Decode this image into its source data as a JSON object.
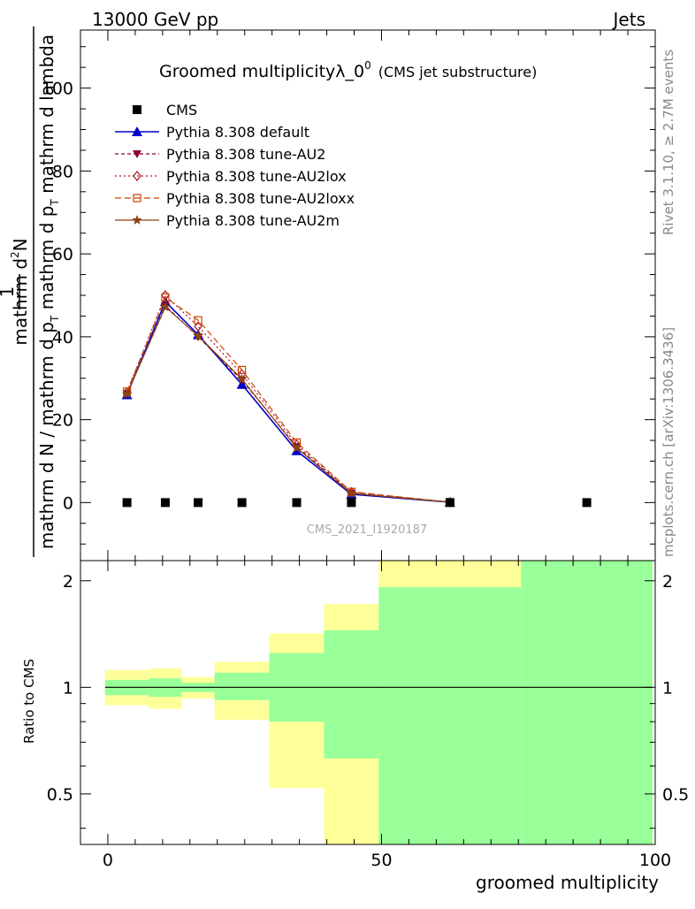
{
  "header": {
    "left": "13000 GeV pp",
    "right": "Jets"
  },
  "side_labels": {
    "rivet": "Rivet 3.1.10, ≥ 2.7M events",
    "mcplots": "mcplots.cern.ch [arXiv:1306.3436]"
  },
  "colors": {
    "cms": "#000000",
    "default": "#0000cc",
    "au2": "#8b0033",
    "au2lox": "#b0102a",
    "au2loxx": "#cc4400",
    "au2m": "#8b4513",
    "band_inner": "#99ff99",
    "band_outer": "#ffff99"
  },
  "chart_data": [
    {
      "type": "line",
      "title": "Groomed multiplicityλ_0",
      "title_sup": "0",
      "title_note": "(CMS jet substructure)",
      "ylabel_top": "1",
      "ylabel_num": "mathrm d",
      "ylabel_num_sup": "2",
      "ylabel_num_tail": "N",
      "ylabel_den": "mathrm d N / mathrm d p",
      "ylabel_den_sub": "T",
      "ylabel_den_mid": " mathrm d p",
      "ylabel_den_sub2": "T",
      "ylabel_den_tail": " mathrm d lambda",
      "watermark": "CMS_2021_I1920187",
      "xlim": [
        -5,
        100
      ],
      "ylim": [
        -14,
        114
      ],
      "yticks": [
        0,
        20,
        40,
        60,
        80,
        100
      ],
      "grid": false,
      "legend_position": "top-left",
      "series": [
        {
          "name": "CMS",
          "style": "cms",
          "x": [
            3.5,
            10.5,
            16.5,
            24.5,
            34.5,
            44.5,
            62.5,
            87.5
          ],
          "y": [
            0,
            0,
            0,
            0,
            0,
            0,
            0,
            0
          ]
        },
        {
          "name": "Pythia 8.308 default",
          "style": "default",
          "x": [
            3.5,
            10.5,
            16.5,
            24.5,
            34.5,
            44.5,
            62.5
          ],
          "y": [
            26.0,
            48.5,
            40.5,
            28.5,
            12.5,
            2.0,
            0.1
          ]
        },
        {
          "name": "Pythia 8.308 tune-AU2",
          "style": "au2",
          "x": [
            3.5,
            10.5,
            16.5,
            24.5,
            34.5,
            44.5,
            62.5
          ],
          "y": [
            26.3,
            47.5,
            40.0,
            29.5,
            13.5,
            2.3,
            0.1
          ]
        },
        {
          "name": "Pythia 8.308 tune-AU2lox",
          "style": "au2lox",
          "x": [
            3.5,
            10.5,
            16.5,
            24.5,
            34.5,
            44.5,
            62.5
          ],
          "y": [
            26.6,
            50.0,
            42.5,
            31.0,
            14.0,
            2.5,
            0.1
          ]
        },
        {
          "name": "Pythia 8.308 tune-AU2loxx",
          "style": "au2loxx",
          "x": [
            3.5,
            10.5,
            16.5,
            24.5,
            34.5,
            44.5,
            62.5
          ],
          "y": [
            26.8,
            49.5,
            44.0,
            32.0,
            14.5,
            2.6,
            0.1
          ]
        },
        {
          "name": "Pythia 8.308 tune-AU2m",
          "style": "au2m",
          "x": [
            3.5,
            10.5,
            16.5,
            24.5,
            34.5,
            44.5,
            62.5
          ],
          "y": [
            26.2,
            47.2,
            40.2,
            29.8,
            13.2,
            2.2,
            0.1
          ]
        }
      ]
    },
    {
      "type": "area",
      "ylabel": "Ratio to CMS",
      "xlabel": "groomed multiplicity",
      "xlim": [
        -5,
        100
      ],
      "xticks": [
        0,
        50,
        100
      ],
      "ylim": [
        0.36,
        2.28
      ],
      "yticks": [
        0.5,
        1,
        2
      ],
      "reference": 1,
      "bins": [
        {
          "x0": -0.5,
          "x1": 7.5,
          "inner": [
            0.95,
            1.05
          ],
          "outer": [
            0.89,
            1.12
          ]
        },
        {
          "x0": 7.5,
          "x1": 13.5,
          "inner": [
            0.94,
            1.06
          ],
          "outer": [
            0.87,
            1.13
          ]
        },
        {
          "x0": 13.5,
          "x1": 19.5,
          "inner": [
            0.97,
            1.03
          ],
          "outer": [
            0.93,
            1.07
          ]
        },
        {
          "x0": 19.5,
          "x1": 29.5,
          "inner": [
            0.92,
            1.1
          ],
          "outer": [
            0.81,
            1.18
          ]
        },
        {
          "x0": 29.5,
          "x1": 39.5,
          "inner": [
            0.8,
            1.25
          ],
          "outer": [
            0.52,
            1.42
          ]
        },
        {
          "x0": 39.5,
          "x1": 49.5,
          "inner": [
            0.63,
            1.45
          ],
          "outer": [
            0.36,
            1.72
          ]
        },
        {
          "x0": 49.5,
          "x1": 75.5,
          "inner": [
            0.36,
            1.92
          ],
          "outer": [
            0.36,
            2.28
          ]
        },
        {
          "x0": 75.5,
          "x1": 99.5,
          "inner": [
            0.36,
            2.28
          ],
          "outer": [
            0.36,
            2.28
          ]
        }
      ]
    }
  ]
}
